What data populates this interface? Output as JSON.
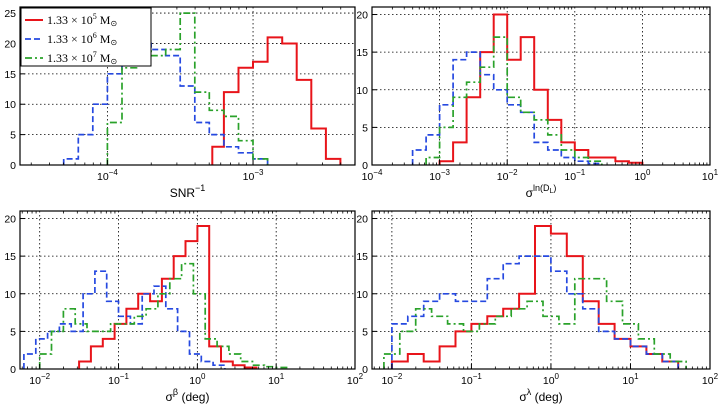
{
  "colors": {
    "s1": "#e8141a",
    "s2": "#2649e0",
    "s3": "#2aa22a",
    "grid": "#000000"
  },
  "legend": [
    {
      "mantissa": "1.33",
      "times": "×",
      "base": "10",
      "exp": "5",
      "unit": "M",
      "sub": "⊙"
    },
    {
      "mantissa": "1.33",
      "times": "×",
      "base": "10",
      "exp": "6",
      "unit": "M",
      "sub": "⊙"
    },
    {
      "mantissa": "1.33",
      "times": "×",
      "base": "10",
      "exp": "7",
      "unit": "M",
      "sub": "⊙"
    }
  ],
  "chart_data": [
    {
      "type": "histogram",
      "xscale": "log",
      "xlim": [
        -4.6,
        -2.3
      ],
      "ylim": [
        0,
        26
      ],
      "xticks": [
        {
          "exp": -4,
          "label": "10",
          "sup": "−4"
        },
        {
          "exp": -3,
          "label": "10",
          "sup": "−3"
        }
      ],
      "yticks": [
        0,
        5,
        10,
        15,
        20,
        25
      ],
      "xlabel": {
        "base": "SNR",
        "sup": "−1"
      },
      "series": [
        {
          "name": "1.33e5",
          "color": "s1",
          "dash": "solid",
          "edges": [
            -3.28,
            -3.2,
            -3.1,
            -3.0,
            -2.9,
            -2.8,
            -2.7,
            -2.6,
            -2.5,
            -2.4
          ],
          "values": [
            3,
            12,
            16,
            17,
            21,
            20,
            14,
            6,
            1
          ]
        },
        {
          "name": "1.33e6",
          "color": "s2",
          "dash": "dashed",
          "edges": [
            -4.3,
            -4.2,
            -4.1,
            -4.0,
            -3.9,
            -3.8,
            -3.7,
            -3.6,
            -3.5,
            -3.4,
            -3.3,
            -3.2,
            -3.1,
            -3.0,
            -2.9
          ],
          "values": [
            1,
            5,
            10,
            15,
            19,
            20,
            19,
            18,
            13,
            7,
            5,
            3,
            2,
            1
          ]
        },
        {
          "name": "1.33e7",
          "color": "s3",
          "dash": "dashdot",
          "edges": [
            -4.0,
            -3.9,
            -3.8,
            -3.7,
            -3.6,
            -3.5,
            -3.4,
            -3.3,
            -3.2,
            -3.1,
            -3.0,
            -2.9
          ],
          "values": [
            7,
            16,
            19,
            18,
            19,
            25,
            12,
            9,
            8,
            4,
            1
          ]
        }
      ]
    },
    {
      "type": "histogram",
      "xscale": "log",
      "xlim": [
        -4,
        1
      ],
      "ylim": [
        0,
        21
      ],
      "xticks": [
        {
          "exp": -4,
          "label": "10",
          "sup": "−4"
        },
        {
          "exp": -3,
          "label": "10",
          "sup": "−3"
        },
        {
          "exp": -2,
          "label": "10",
          "sup": "−2"
        },
        {
          "exp": -1,
          "label": "10",
          "sup": "−1"
        },
        {
          "exp": 0,
          "label": "10",
          "sup": "0"
        },
        {
          "exp": 1,
          "label": "10",
          "sup": "1"
        }
      ],
      "yticks": [
        0,
        5,
        10,
        15,
        20
      ],
      "xlabel": {
        "base": "σ",
        "sup": "ln(D",
        "supsub": "L",
        "supclose": ")"
      },
      "series": [
        {
          "name": "1.33e5",
          "color": "s1",
          "dash": "solid",
          "edges": [
            -3.0,
            -2.8,
            -2.6,
            -2.4,
            -2.2,
            -2.0,
            -1.8,
            -1.6,
            -1.4,
            -1.2,
            -1.0,
            -0.8,
            -0.6,
            -0.4,
            -0.2,
            0.0
          ],
          "values": [
            0.5,
            3,
            9,
            15,
            20,
            14,
            17,
            10,
            6,
            3,
            2,
            1,
            1,
            0.5,
            0.3
          ]
        },
        {
          "name": "1.33e6",
          "color": "s2",
          "dash": "dashed",
          "edges": [
            -3.4,
            -3.2,
            -3.0,
            -2.8,
            -2.6,
            -2.4,
            -2.2,
            -2.0,
            -1.8,
            -1.6,
            -1.4,
            -1.2,
            -1.0,
            -0.8,
            -0.6
          ],
          "values": [
            2,
            4,
            8,
            14,
            15,
            12,
            10,
            8,
            7,
            3,
            2,
            1,
            0.5,
            0.2
          ]
        },
        {
          "name": "1.33e7",
          "color": "s3",
          "dash": "dashdot",
          "edges": [
            -3.2,
            -3.0,
            -2.8,
            -2.6,
            -2.4,
            -2.2,
            -2.0,
            -1.8,
            -1.6,
            -1.4,
            -1.2,
            -1.0,
            -0.8,
            -0.6
          ],
          "values": [
            1,
            5,
            9,
            11,
            13,
            17,
            9,
            7,
            6,
            4,
            2,
            1,
            0.5
          ]
        }
      ]
    },
    {
      "type": "histogram",
      "xscale": "log",
      "xlim": [
        -2.25,
        2
      ],
      "ylim": [
        0,
        21
      ],
      "xticks": [
        {
          "exp": -2,
          "label": "10",
          "sup": "−2"
        },
        {
          "exp": -1,
          "label": "10",
          "sup": "−1"
        },
        {
          "exp": 0,
          "label": "10",
          "sup": "0"
        },
        {
          "exp": 1,
          "label": "10",
          "sup": "1"
        },
        {
          "exp": 2,
          "label": "10",
          "sup": "2"
        }
      ],
      "yticks": [
        0,
        5,
        10,
        15,
        20
      ],
      "xlabel": {
        "base": "σ",
        "sup": "β",
        "suffix": " (deg)"
      },
      "series": [
        {
          "name": "1.33e5",
          "color": "s1",
          "dash": "solid",
          "edges": [
            -1.5,
            -1.35,
            -1.2,
            -1.05,
            -0.9,
            -0.75,
            -0.6,
            -0.45,
            -0.3,
            -0.15,
            0.0,
            0.15,
            0.3,
            0.45,
            0.6,
            0.75
          ],
          "values": [
            1,
            3,
            4,
            6,
            8,
            10,
            9,
            12,
            15,
            17,
            19,
            3,
            1,
            0.5,
            0.2
          ]
        },
        {
          "name": "1.33e6",
          "color": "s2",
          "dash": "dashed",
          "edges": [
            -2.2,
            -2.05,
            -1.9,
            -1.75,
            -1.6,
            -1.45,
            -1.3,
            -1.15,
            -1.0,
            -0.85,
            -0.7,
            -0.55,
            -0.4,
            -0.25,
            -0.1,
            0.05,
            0.2,
            0.35
          ],
          "values": [
            2,
            4,
            5,
            6,
            5,
            10,
            13,
            9,
            7,
            6,
            10,
            11,
            8,
            5,
            2,
            1,
            0.5
          ]
        },
        {
          "name": "1.33e7",
          "color": "s3",
          "dash": "dashdot",
          "edges": [
            -2.0,
            -1.85,
            -1.7,
            -1.55,
            -1.4,
            -1.25,
            -1.1,
            -0.95,
            -0.8,
            -0.65,
            -0.5,
            -0.35,
            -0.2,
            -0.05,
            0.1,
            0.25,
            0.4,
            0.55,
            0.7,
            0.85,
            1.0,
            1.15
          ],
          "values": [
            2,
            5,
            8,
            6,
            5,
            5,
            6,
            6,
            7,
            8,
            10,
            12,
            14,
            10,
            4,
            3,
            2,
            1,
            0.5,
            0.3,
            0.2
          ]
        }
      ]
    },
    {
      "type": "histogram",
      "xscale": "log",
      "xlim": [
        -2.25,
        2
      ],
      "ylim": [
        0,
        21
      ],
      "xticks": [
        {
          "exp": -2,
          "label": "10",
          "sup": "−2"
        },
        {
          "exp": -1,
          "label": "10",
          "sup": "−1"
        },
        {
          "exp": 0,
          "label": "10",
          "sup": "0"
        },
        {
          "exp": 1,
          "label": "10",
          "sup": "1"
        },
        {
          "exp": 2,
          "label": "10",
          "sup": "2"
        }
      ],
      "yticks": [
        0,
        5,
        10,
        15,
        20
      ],
      "xlabel": {
        "base": "σ",
        "sup": "λ",
        "suffix": " (deg)"
      },
      "series": [
        {
          "name": "1.33e5",
          "color": "s1",
          "dash": "solid",
          "edges": [
            -2.0,
            -1.8,
            -1.6,
            -1.4,
            -1.2,
            -1.0,
            -0.8,
            -0.6,
            -0.4,
            -0.2,
            0.0,
            0.2,
            0.4,
            0.6,
            0.8,
            1.0,
            1.2,
            1.4,
            1.6
          ],
          "values": [
            1,
            2,
            1,
            3,
            5,
            6,
            7,
            8,
            10,
            19,
            18,
            15,
            9,
            6,
            4,
            3,
            2,
            1
          ]
        },
        {
          "name": "1.33e6",
          "color": "s2",
          "dash": "dashed",
          "edges": [
            -2.0,
            -1.8,
            -1.6,
            -1.4,
            -1.2,
            -1.0,
            -0.8,
            -0.6,
            -0.4,
            -0.2,
            0.0,
            0.2,
            0.4,
            0.6,
            0.8,
            1.0,
            1.2,
            1.4,
            1.6
          ],
          "values": [
            6,
            7,
            9,
            10,
            9,
            9,
            12,
            14,
            15,
            15,
            13,
            10,
            8,
            5,
            4,
            3,
            2,
            1
          ]
        },
        {
          "name": "1.33e7",
          "color": "s3",
          "dash": "dashdot",
          "edges": [
            -2.1,
            -1.9,
            -1.7,
            -1.5,
            -1.3,
            -1.1,
            -0.9,
            -0.7,
            -0.5,
            -0.3,
            -0.1,
            0.1,
            0.3,
            0.5,
            0.7,
            0.9,
            1.1,
            1.3,
            1.5,
            1.7
          ],
          "values": [
            2,
            5,
            8,
            7,
            6,
            5,
            6,
            7,
            8,
            9,
            7,
            6,
            12,
            12,
            9,
            6,
            4,
            2,
            1
          ]
        }
      ]
    }
  ]
}
